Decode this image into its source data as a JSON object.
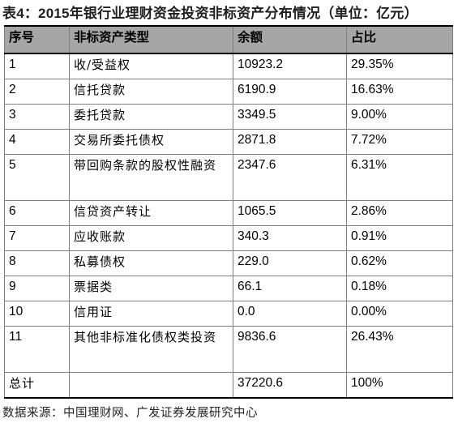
{
  "title": "表4：2015年银行业理财资金投资非标资产分布情况（单位：亿元）",
  "headers": [
    "序号",
    "非标资产类型",
    "余额",
    "占比"
  ],
  "rows": [
    {
      "no": "1",
      "type": "收/受益权",
      "balance": "10923.2",
      "share": "29.35%"
    },
    {
      "no": "2",
      "type": "信托贷款",
      "balance": "6190.9",
      "share": "16.63%"
    },
    {
      "no": "3",
      "type": "委托贷款",
      "balance": "3349.5",
      "share": "9.00%"
    },
    {
      "no": "4",
      "type": "交易所委托债权",
      "balance": "2871.8",
      "share": "7.72%"
    },
    {
      "no": "5",
      "type": "带回购条款的股权性融资",
      "balance": "2347.6",
      "share": "6.31%"
    },
    {
      "no": "6",
      "type": "信贷资产转让",
      "balance": "1065.5",
      "share": "2.86%"
    },
    {
      "no": "7",
      "type": "应收账款",
      "balance": "340.3",
      "share": "0.91%"
    },
    {
      "no": "8",
      "type": "私募债权",
      "balance": "229.0",
      "share": "0.62%"
    },
    {
      "no": "9",
      "type": "票据类",
      "balance": "66.1",
      "share": "0.18%"
    },
    {
      "no": "10",
      "type": "信用证",
      "balance": "0.0",
      "share": "0.00%"
    },
    {
      "no": "11",
      "type": "其他非标准化债权类投资",
      "balance": "9836.6",
      "share": "26.43%"
    }
  ],
  "total": {
    "label": "总计",
    "type": "",
    "balance": "37220.6",
    "share": "100%"
  },
  "source": "数据来源：中国理财网、广发证券发展研究中心"
}
